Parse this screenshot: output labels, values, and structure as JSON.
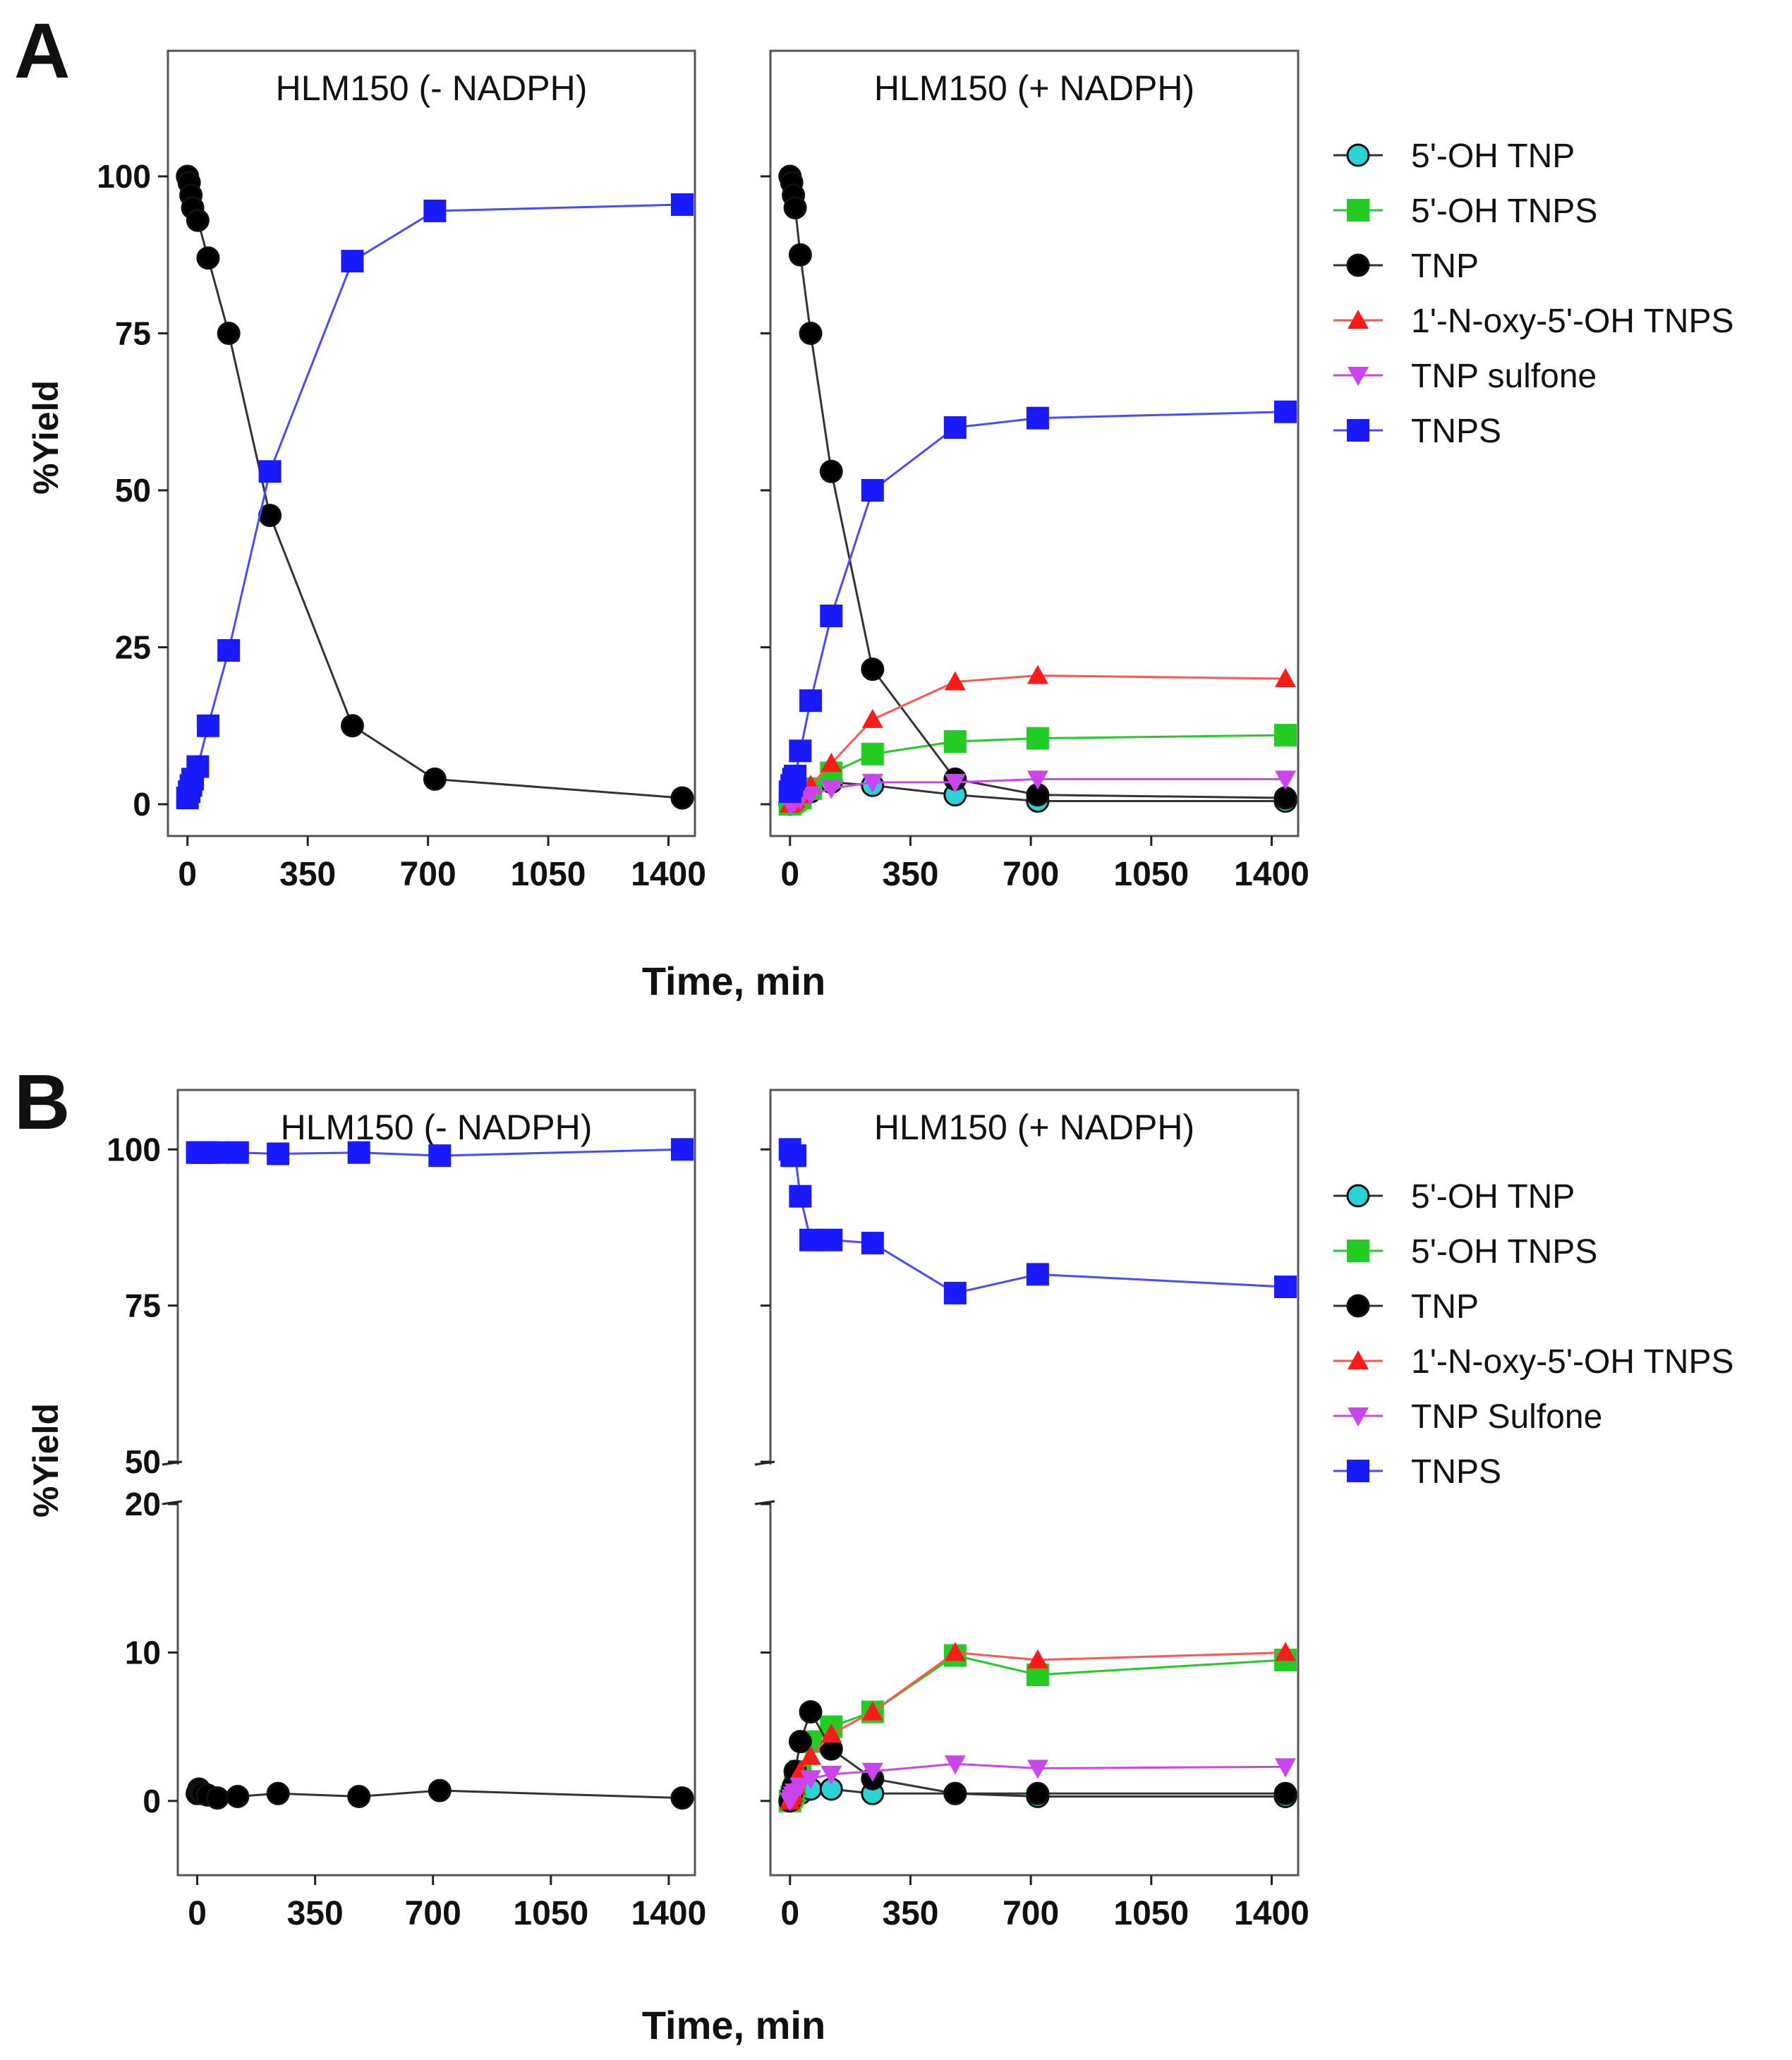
{
  "figure": {
    "panels": [
      {
        "letter": "A",
        "xlabel": "Time, min",
        "ylabel": "%Yield",
        "legend": [
          "5'-OH TNP",
          "5'-OH TNPS",
          "TNP",
          "1'-N-oxy-5'-OH TNPS",
          "TNP sulfone",
          "TNPS"
        ]
      },
      {
        "letter": "B",
        "xlabel": "Time, min",
        "ylabel": "%Yield",
        "legend": [
          "5'-OH TNP",
          "5'-OH TNPS",
          "TNP",
          "1'-N-oxy-5'-OH TNPS",
          "TNP Sulfone",
          "TNPS"
        ]
      }
    ]
  },
  "series_styles": [
    {
      "key": "ohtnp",
      "color": "#2ad4d4",
      "marker": "circle",
      "line": "#333333"
    },
    {
      "key": "ohtnps",
      "color": "#22cc22",
      "marker": "square",
      "line": "#22cc22"
    },
    {
      "key": "tnp",
      "color": "#000000",
      "marker": "circle",
      "line": "#333333"
    },
    {
      "key": "noxy",
      "color": "#ff1a1a",
      "marker": "triangle-up",
      "line": "#ff5555"
    },
    {
      "key": "sulfone",
      "color": "#cc44ee",
      "marker": "triangle-down",
      "line": "#cc44ee"
    },
    {
      "key": "tnps",
      "color": "#1a1aff",
      "marker": "square",
      "line": "#4a4aff"
    }
  ],
  "chart_data": [
    {
      "type": "line",
      "panel": "A",
      "title": "HLM150 (- NADPH)",
      "xlabel": "Time, min",
      "ylabel": "%Yield",
      "xlim": [
        -20,
        1440
      ],
      "ylim": [
        -5,
        100
      ],
      "xticks": [
        0,
        350,
        700,
        1050,
        1400
      ],
      "yticks": [
        0,
        25,
        50,
        75,
        100
      ],
      "series": [
        {
          "name": "TNP",
          "x": [
            0,
            5,
            10,
            15,
            30,
            60,
            120,
            240,
            480,
            720,
            1440
          ],
          "y": [
            100,
            99,
            97,
            95,
            93,
            87,
            75,
            46,
            12.5,
            4,
            1
          ]
        },
        {
          "name": "TNPS",
          "x": [
            0,
            5,
            10,
            15,
            30,
            60,
            120,
            240,
            480,
            720,
            1440
          ],
          "y": [
            1,
            2,
            3,
            4,
            6,
            12.5,
            24.5,
            53,
            86.5,
            94.5,
            95.5
          ]
        }
      ]
    },
    {
      "type": "line",
      "panel": "A",
      "title": "HLM150 (+ NADPH)",
      "xlabel": "Time, min",
      "ylabel": "%Yield",
      "xlim": [
        -20,
        1440
      ],
      "ylim": [
        -5,
        100
      ],
      "xticks": [
        0,
        350,
        700,
        1050,
        1400
      ],
      "yticks": [
        0,
        25,
        50,
        75,
        100
      ],
      "legend_position": "right",
      "series": [
        {
          "name": "5'-OH TNP",
          "x": [
            0,
            5,
            10,
            15,
            30,
            60,
            120,
            240,
            480,
            720,
            1440
          ],
          "y": [
            0,
            0.3,
            0.5,
            0.7,
            1,
            2,
            3.5,
            3,
            1.5,
            0.5,
            0.5
          ]
        },
        {
          "name": "5'-OH TNPS",
          "x": [
            0,
            5,
            10,
            15,
            30,
            60,
            120,
            240,
            480,
            720,
            1440
          ],
          "y": [
            0,
            0.3,
            0.5,
            0.7,
            1,
            2.5,
            5,
            8,
            10,
            10.5,
            11
          ]
        },
        {
          "name": "TNP",
          "x": [
            0,
            5,
            10,
            15,
            30,
            60,
            120,
            240,
            480,
            720,
            1440
          ],
          "y": [
            100,
            99,
            97,
            95,
            87.5,
            75,
            53,
            21.5,
            4,
            1.5,
            1
          ]
        },
        {
          "name": "1'-N-oxy-5'-OH TNPS",
          "x": [
            0,
            5,
            10,
            15,
            30,
            60,
            120,
            240,
            480,
            720,
            1440
          ],
          "y": [
            0,
            0.3,
            0.5,
            0.8,
            1.5,
            3,
            6.5,
            13.5,
            19.5,
            20.5,
            20
          ]
        },
        {
          "name": "TNP sulfone",
          "x": [
            0,
            5,
            10,
            15,
            30,
            60,
            120,
            240,
            480,
            720,
            1440
          ],
          "y": [
            0,
            0.2,
            0.4,
            0.5,
            0.8,
            1.5,
            2.5,
            3.5,
            3.5,
            4,
            4
          ]
        },
        {
          "name": "TNPS",
          "x": [
            0,
            5,
            10,
            15,
            30,
            60,
            120,
            240,
            480,
            720,
            1440
          ],
          "y": [
            2,
            3,
            4,
            4.5,
            8.5,
            16.5,
            30,
            50,
            60,
            61.5,
            62.5
          ]
        }
      ]
    },
    {
      "type": "line",
      "panel": "B",
      "title": "HLM150 (- NADPH)",
      "xlabel": "Time, min",
      "ylabel": "%Yield",
      "xlim": [
        -20,
        1440
      ],
      "y_axis_break": {
        "lower_range": [
          -5,
          20
        ],
        "upper_range": [
          50,
          105
        ]
      },
      "xticks": [
        0,
        350,
        700,
        1050,
        1400
      ],
      "yticks": [
        0,
        10,
        20,
        50,
        75,
        100
      ],
      "series": [
        {
          "name": "TNP",
          "x": [
            0,
            5,
            10,
            15,
            30,
            60,
            120,
            240,
            480,
            720,
            1440
          ],
          "y": [
            0.5,
            0.8,
            0.6,
            0.5,
            0.4,
            0.2,
            0.3,
            0.5,
            0.3,
            0.7,
            0.2
          ]
        },
        {
          "name": "TNPS",
          "x": [
            0,
            5,
            10,
            15,
            30,
            60,
            120,
            240,
            480,
            720,
            1440
          ],
          "y": [
            99.5,
            99.5,
            99.5,
            99.5,
            99.5,
            99.5,
            99.5,
            99.3,
            99.5,
            99.0,
            100
          ]
        }
      ]
    },
    {
      "type": "line",
      "panel": "B",
      "title": "HLM150 (+ NADPH)",
      "xlabel": "Time, min",
      "ylabel": "%Yield",
      "xlim": [
        -20,
        1440
      ],
      "y_axis_break": {
        "lower_range": [
          -5,
          20
        ],
        "upper_range": [
          50,
          105
        ]
      },
      "xticks": [
        0,
        350,
        700,
        1050,
        1400
      ],
      "yticks": [
        0,
        10,
        20,
        50,
        75,
        100
      ],
      "legend_position": "right",
      "series": [
        {
          "name": "5'-OH TNP",
          "x": [
            0,
            5,
            10,
            15,
            30,
            60,
            120,
            240,
            480,
            720,
            1440
          ],
          "y": [
            0,
            0.1,
            0.2,
            0.3,
            0.5,
            0.8,
            0.8,
            0.5,
            0.5,
            0.3,
            0.3
          ]
        },
        {
          "name": "5'-OH TNPS",
          "x": [
            0,
            5,
            10,
            15,
            30,
            60,
            120,
            240,
            480,
            720,
            1440
          ],
          "y": [
            0,
            0.3,
            0.5,
            1,
            2,
            4,
            5,
            6,
            9.8,
            8.5,
            9.5
          ]
        },
        {
          "name": "TNP",
          "x": [
            0,
            5,
            10,
            15,
            30,
            60,
            120,
            240,
            480,
            720,
            1440
          ],
          "y": [
            0,
            0.5,
            1,
            2,
            4,
            6,
            3.5,
            1.5,
            0.5,
            0.5,
            0.5
          ]
        },
        {
          "name": "1'-N-oxy-5'-OH TNPS",
          "x": [
            0,
            5,
            10,
            15,
            30,
            60,
            120,
            240,
            480,
            720,
            1440
          ],
          "y": [
            0,
            0.3,
            0.5,
            1,
            2,
            3,
            4.5,
            6,
            10,
            9.5,
            10
          ]
        },
        {
          "name": "TNP Sulfone",
          "x": [
            0,
            5,
            10,
            15,
            30,
            60,
            120,
            240,
            480,
            720,
            1440
          ],
          "y": [
            0,
            0.2,
            0.4,
            0.6,
            1,
            1.5,
            1.8,
            2,
            2.5,
            2.2,
            2.3
          ]
        },
        {
          "name": "TNPS",
          "x": [
            0,
            5,
            10,
            15,
            30,
            60,
            120,
            240,
            480,
            720,
            1440
          ],
          "y": [
            100,
            99,
            99,
            99,
            92.5,
            85.5,
            85.5,
            85,
            77,
            80,
            78
          ]
        }
      ]
    }
  ]
}
